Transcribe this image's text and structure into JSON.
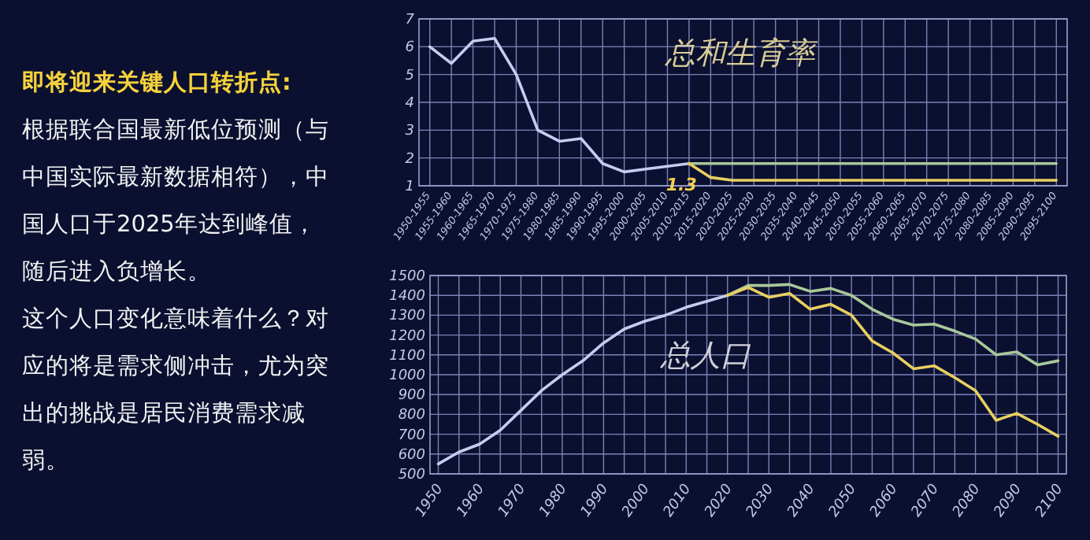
{
  "chart_data": [
    {
      "type": "other",
      "title": "即将迎来关键人口转折点:",
      "annotations": [
        "根据联合国最新低位预测（与中国实际最新数据相符），中国人口于2025年达到峰值，随后进入负增长。",
        "这个人口变化意味着什么？对应的将是需求侧冲击，尤为突出的挑战是居民消费需求减弱。"
      ]
    },
    {
      "type": "line",
      "title": "总和生育率",
      "categories": [
        "1950-1955",
        "1955-1960",
        "1960-1965",
        "1965-1970",
        "1970-1975",
        "1975-1980",
        "1980-1985",
        "1985-1990",
        "1990-1995",
        "1995-2000",
        "2000-2005",
        "2005-2010",
        "2010-2015",
        "2015-2020",
        "2020-2025",
        "2025-2030",
        "2030-2035",
        "2035-2040",
        "2040-2045",
        "2045-2050",
        "2050-2055",
        "2055-2060",
        "2060-2065",
        "2065-2070",
        "2070-2075",
        "2075-2080",
        "2080-2085",
        "2085-2090",
        "2090-2095",
        "2095-2100"
      ],
      "ylim": [
        1,
        7
      ],
      "yticks": [
        1,
        2,
        3,
        4,
        5,
        6,
        7
      ],
      "grid": true,
      "annotations": [
        "1.3"
      ],
      "series": [
        {
          "color": "#c8cbf0",
          "values": [
            6.0,
            5.4,
            6.2,
            6.3,
            5.0,
            3.0,
            2.6,
            2.7,
            1.8,
            1.5,
            1.6,
            1.7,
            1.8,
            null,
            null,
            null,
            null,
            null,
            null,
            null,
            null,
            null,
            null,
            null,
            null,
            null,
            null,
            null,
            null,
            null
          ]
        },
        {
          "color": "#a8c89a",
          "values": [
            null,
            null,
            null,
            null,
            null,
            null,
            null,
            null,
            null,
            null,
            null,
            null,
            1.8,
            1.8,
            1.8,
            1.8,
            1.8,
            1.8,
            1.8,
            1.8,
            1.8,
            1.8,
            1.8,
            1.8,
            1.8,
            1.8,
            1.8,
            1.8,
            1.8,
            1.8
          ]
        },
        {
          "color": "#e8d060",
          "values": [
            null,
            null,
            null,
            null,
            null,
            null,
            null,
            null,
            null,
            null,
            null,
            null,
            1.8,
            1.3,
            1.2,
            1.2,
            1.2,
            1.2,
            1.2,
            1.2,
            1.2,
            1.2,
            1.2,
            1.2,
            1.2,
            1.2,
            1.2,
            1.2,
            1.2,
            1.2
          ]
        }
      ]
    },
    {
      "type": "line",
      "title": "总人口",
      "xlim": [
        1948,
        2102
      ],
      "xticks": [
        1950,
        1960,
        1970,
        1980,
        1990,
        2000,
        2010,
        2020,
        2030,
        2040,
        2050,
        2060,
        2070,
        2080,
        2090,
        2100
      ],
      "ylim": [
        500,
        1500
      ],
      "yticks": [
        500,
        600,
        700,
        800,
        900,
        1000,
        1100,
        1200,
        1300,
        1400,
        1500
      ],
      "grid": true,
      "series": [
        {
          "color": "#c8cbf0",
          "x": [
            1950,
            1955,
            1960,
            1965,
            1970,
            1975,
            1980,
            1985,
            1990,
            1995,
            2000,
            2005,
            2010,
            2015,
            2020
          ],
          "values": [
            550,
            610,
            650,
            720,
            820,
            920,
            1000,
            1070,
            1160,
            1230,
            1270,
            1300,
            1340,
            1370,
            1400
          ]
        },
        {
          "color": "#a8c89a",
          "x": [
            2020,
            2025,
            2030,
            2035,
            2040,
            2045,
            2050,
            2055,
            2060,
            2065,
            2070,
            2075,
            2080,
            2085,
            2090,
            2095,
            2100
          ],
          "values": [
            1400,
            1450,
            1450,
            1455,
            1420,
            1435,
            1400,
            1330,
            1280,
            1250,
            1255,
            1220,
            1180,
            1100,
            1115,
            1050,
            1070
          ]
        },
        {
          "color": "#e8d060",
          "x": [
            2020,
            2025,
            2030,
            2035,
            2040,
            2045,
            2050,
            2055,
            2060,
            2065,
            2070,
            2075,
            2080,
            2085,
            2090,
            2095,
            2100
          ],
          "values": [
            1400,
            1440,
            1390,
            1410,
            1330,
            1355,
            1300,
            1170,
            1110,
            1030,
            1045,
            985,
            920,
            770,
            805,
            750,
            690
          ]
        }
      ]
    }
  ]
}
